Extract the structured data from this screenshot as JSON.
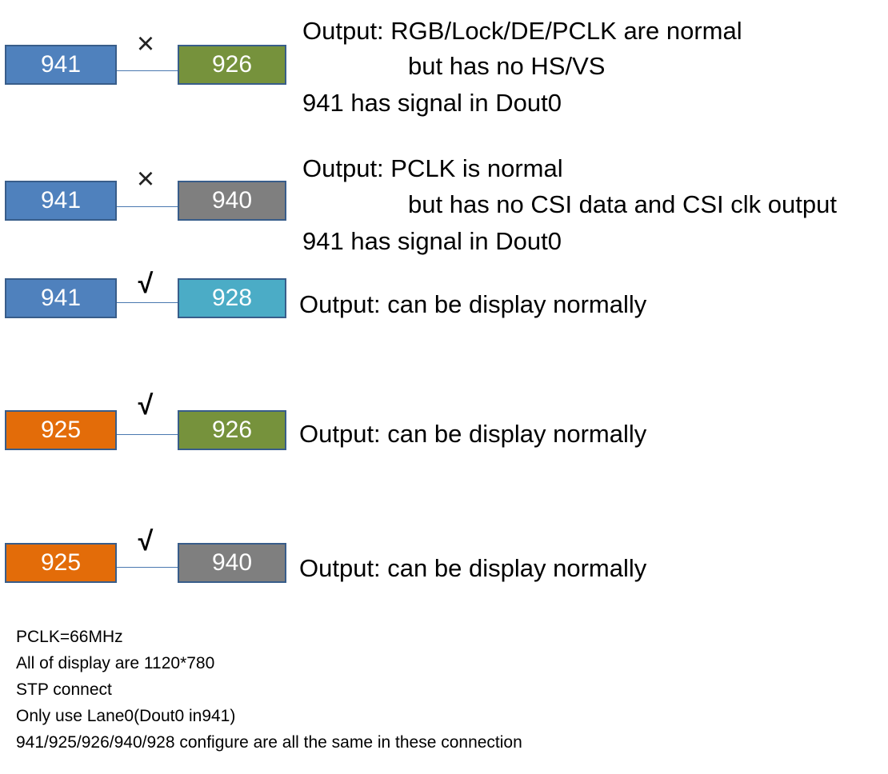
{
  "colors": {
    "chip_941": "#4f81bd",
    "chip_926": "#76923c",
    "chip_940": "#7f7f7f",
    "chip_928": "#4bacc6",
    "chip_925": "#e36c09"
  },
  "rows": [
    {
      "source": "941",
      "sink": "926",
      "mark": "×",
      "mark_icon": "cross-icon",
      "lines": [
        "Output: RGB/Lock/DE/PCLK are normal",
        "but has no HS/VS",
        "941 has signal in Dout0"
      ]
    },
    {
      "source": "941",
      "sink": "940",
      "mark": "×",
      "mark_icon": "cross-icon",
      "lines": [
        "Output: PCLK is normal",
        "but has no CSI data and CSI clk output",
        "941 has signal in Dout0"
      ]
    },
    {
      "source": "941",
      "sink": "928",
      "mark": "√",
      "mark_icon": "check-icon",
      "lines": [
        "Output: can be display normally"
      ]
    },
    {
      "source": "925",
      "sink": "926",
      "mark": "√",
      "mark_icon": "check-icon",
      "lines": [
        "Output: can be display normally"
      ]
    },
    {
      "source": "925",
      "sink": "940",
      "mark": "√",
      "mark_icon": "check-icon",
      "lines": [
        "Output: can be display normally"
      ]
    }
  ],
  "notes": [
    "PCLK=66MHz",
    "All of display are 1120*780",
    "STP connect",
    "Only use Lane0(Dout0 in941)",
    "941/925/926/940/928 configure are all the same in these connection"
  ]
}
